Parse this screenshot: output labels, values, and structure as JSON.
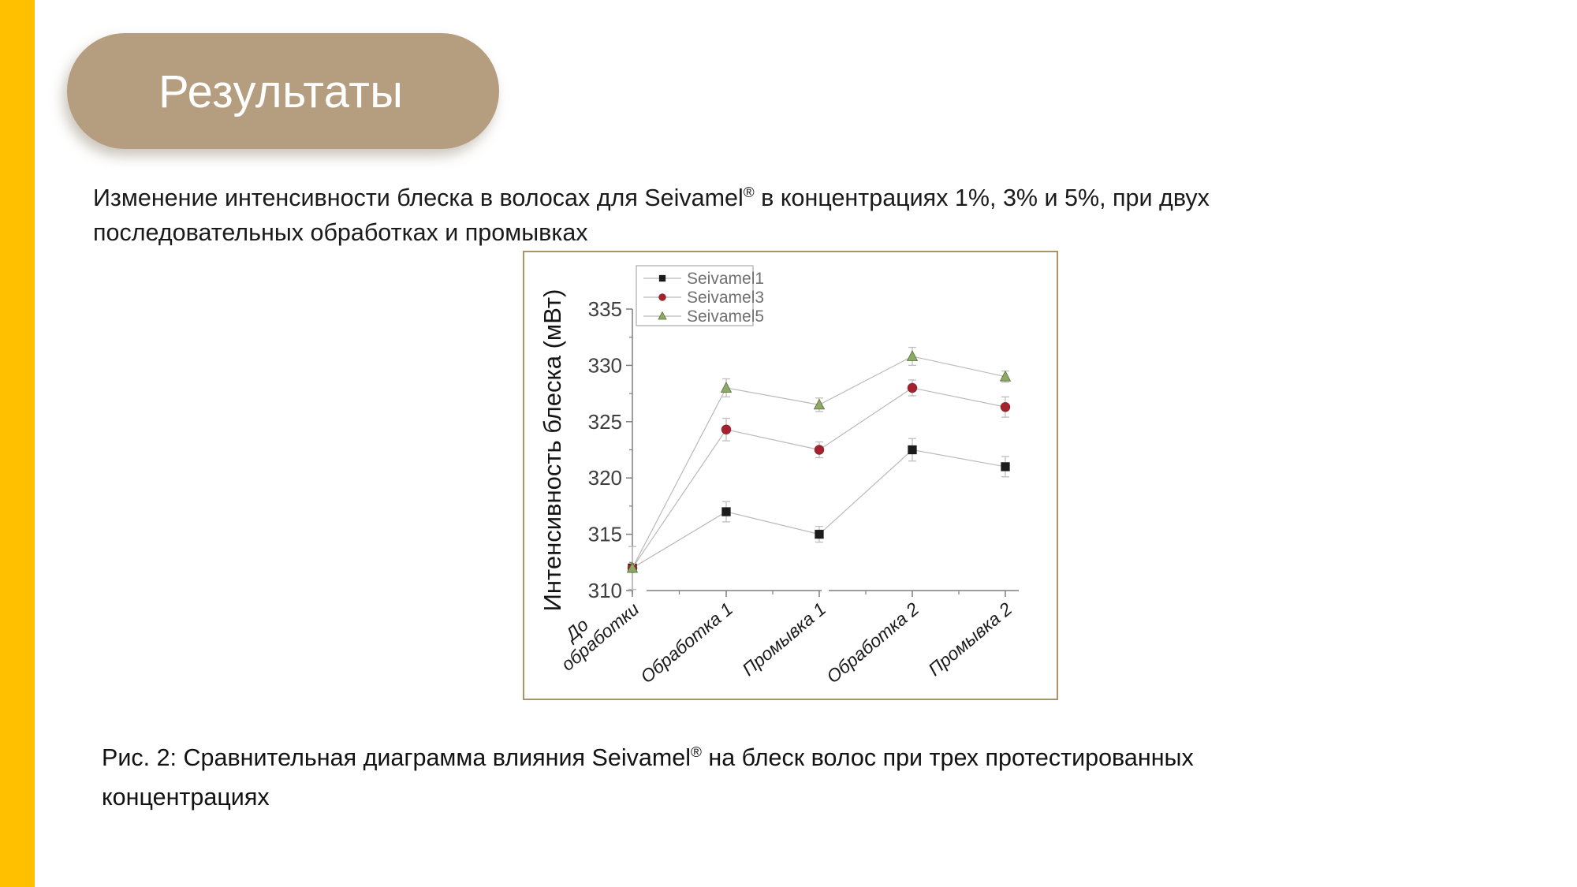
{
  "slide": {
    "title": "Результаты",
    "intro": {
      "line1_part1": "Изменение интенсивности блеска в волосах для Seivamel",
      "reg": "®",
      "line1_part2": "  в концентрациях 1%, 3% и 5%, при двух",
      "line2": "последовательных обработках и промывках"
    },
    "caption": {
      "line1_part1": "Рис. 2: Сравнительная диаграмма влияния Seivamel",
      "reg": "®",
      "line1_part2": " на блеск волос при трех протестированных",
      "line2": "концентрациях"
    }
  },
  "colors": {
    "accent_bar": "#FFC000",
    "title_pill": "#B59E7F",
    "frame_border": "#AB9268"
  },
  "chart_data": {
    "type": "line",
    "title": "",
    "xlabel": "",
    "ylabel": "Интенсивность блеска (мВт)",
    "ylim": [
      310,
      335
    ],
    "yticks": [
      310,
      315,
      320,
      325,
      330,
      335
    ],
    "grid": false,
    "categories": [
      "До обработки",
      "Обработка 1",
      "Промывка 1",
      "Обработка 2",
      "Промывка 2"
    ],
    "series": [
      {
        "name": "Seivamel1",
        "marker": "square",
        "color": "#1c1c1c",
        "values": [
          312,
          317,
          315,
          322.5,
          321
        ],
        "errors": [
          1.9,
          0.9,
          0.7,
          1.0,
          0.9
        ]
      },
      {
        "name": "Seivamel3",
        "marker": "circle",
        "color": "#A6202E",
        "values": [
          312,
          324.3,
          322.5,
          328,
          326.3
        ],
        "errors": [
          1.9,
          1.0,
          0.7,
          0.7,
          0.9
        ]
      },
      {
        "name": "Seivamel5",
        "marker": "triangle",
        "color": "#8CA968",
        "values": [
          312,
          328,
          326.5,
          330.8,
          329
        ],
        "errors": [
          1.9,
          0.8,
          0.6,
          0.8,
          0.5
        ]
      }
    ],
    "legend": {
      "position": "top-left",
      "entries": [
        "Seivamel1",
        "Seivamel3",
        "Seivamel5"
      ]
    },
    "styles": {
      "line_color": "#BDB8B8",
      "errorbar_color": "#C3BCBC",
      "axis_color": "#7f7f7f",
      "tick_label_color": "#3f3f3f",
      "axis_label_color": "#141414",
      "category_label_color": "#1a1a1a",
      "legend_text_color": "#707070",
      "legend_border_color": "#9a9a9a"
    }
  }
}
